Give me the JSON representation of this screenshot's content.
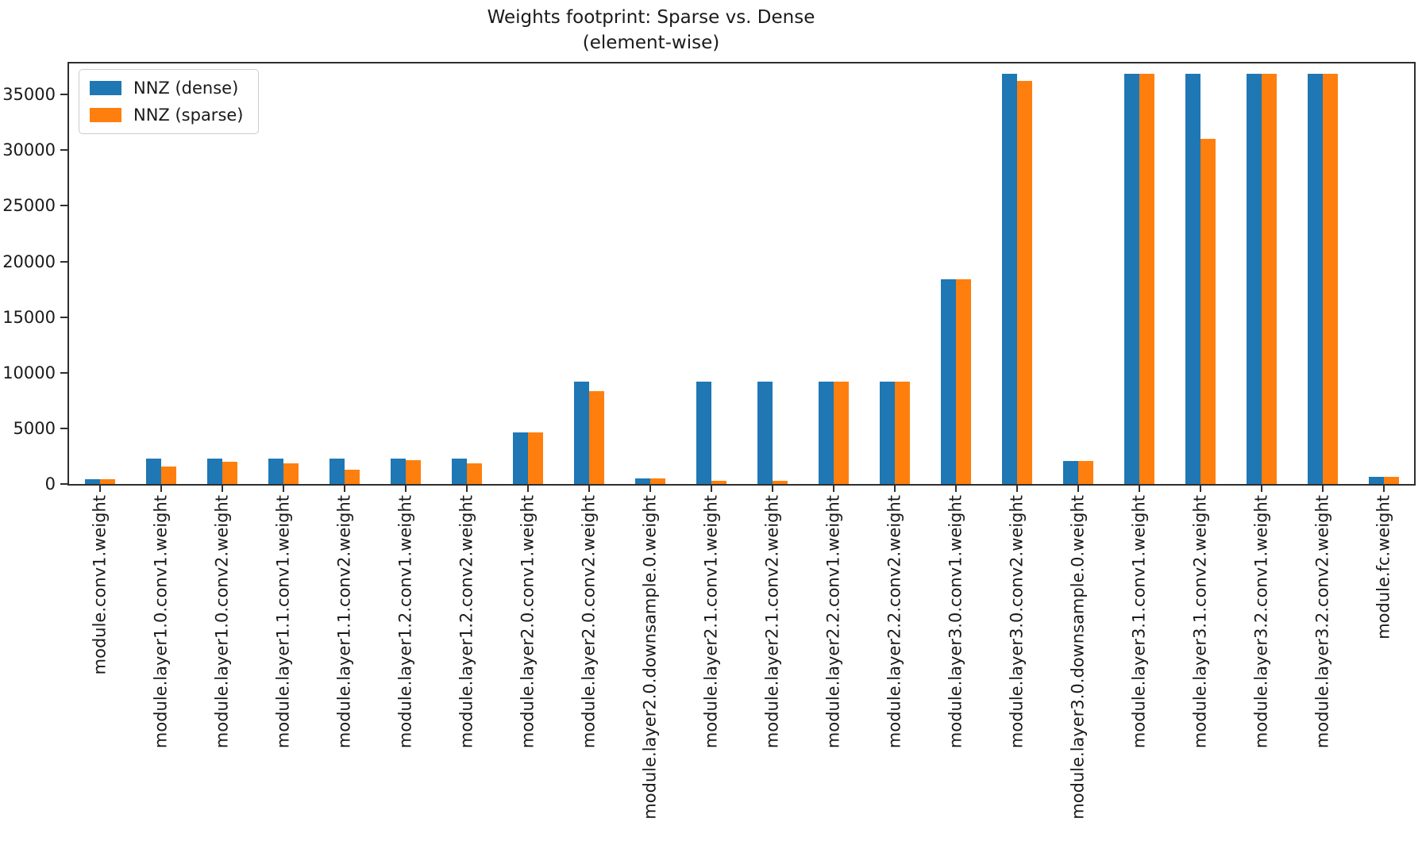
{
  "title": {
    "line1": "Weights footprint: Sparse vs. Dense",
    "line2": "(element-wise)"
  },
  "legend": [
    {
      "label": "NNZ (dense)",
      "color": "#1f77b4"
    },
    {
      "label": "NNZ (sparse)",
      "color": "#ff7f0e"
    }
  ],
  "y_axis": {
    "ticks": [
      0,
      5000,
      10000,
      15000,
      20000,
      25000,
      30000,
      35000
    ]
  },
  "chart_data": {
    "type": "bar",
    "title": "Weights footprint: Sparse vs. Dense\n(element-wise)",
    "xlabel": "",
    "ylabel": "",
    "ylim": [
      0,
      37800
    ],
    "grid": false,
    "legend_position": "upper left",
    "bar_colors": {
      "dense": "#1f77b4",
      "sparse": "#ff7f0e"
    },
    "categories": [
      "module.conv1.weight",
      "module.layer1.0.conv1.weight",
      "module.layer1.0.conv2.weight",
      "module.layer1.1.conv1.weight",
      "module.layer1.1.conv2.weight",
      "module.layer1.2.conv1.weight",
      "module.layer1.2.conv2.weight",
      "module.layer2.0.conv1.weight",
      "module.layer2.0.conv2.weight",
      "module.layer2.0.downsample.0.weight",
      "module.layer2.1.conv1.weight",
      "module.layer2.1.conv2.weight",
      "module.layer2.2.conv1.weight",
      "module.layer2.2.conv2.weight",
      "module.layer3.0.conv1.weight",
      "module.layer3.0.conv2.weight",
      "module.layer3.0.downsample.0.weight",
      "module.layer3.1.conv1.weight",
      "module.layer3.1.conv2.weight",
      "module.layer3.2.conv1.weight",
      "module.layer3.2.conv2.weight",
      "module.fc.weight"
    ],
    "series": [
      {
        "name": "NNZ (dense)",
        "color": "#1f77b4",
        "values": [
          432,
          2304,
          2304,
          2304,
          2304,
          2304,
          2304,
          4608,
          9216,
          512,
          9216,
          9216,
          9216,
          9216,
          18432,
          36864,
          2048,
          36864,
          36864,
          36864,
          36864,
          640
        ]
      },
      {
        "name": "NNZ (sparse)",
        "color": "#ff7f0e",
        "values": [
          432,
          1600,
          2020,
          1870,
          1300,
          2160,
          1860,
          4608,
          8350,
          512,
          300,
          300,
          9216,
          9216,
          18432,
          36250,
          2048,
          36864,
          31000,
          36864,
          36864,
          640
        ]
      }
    ]
  }
}
